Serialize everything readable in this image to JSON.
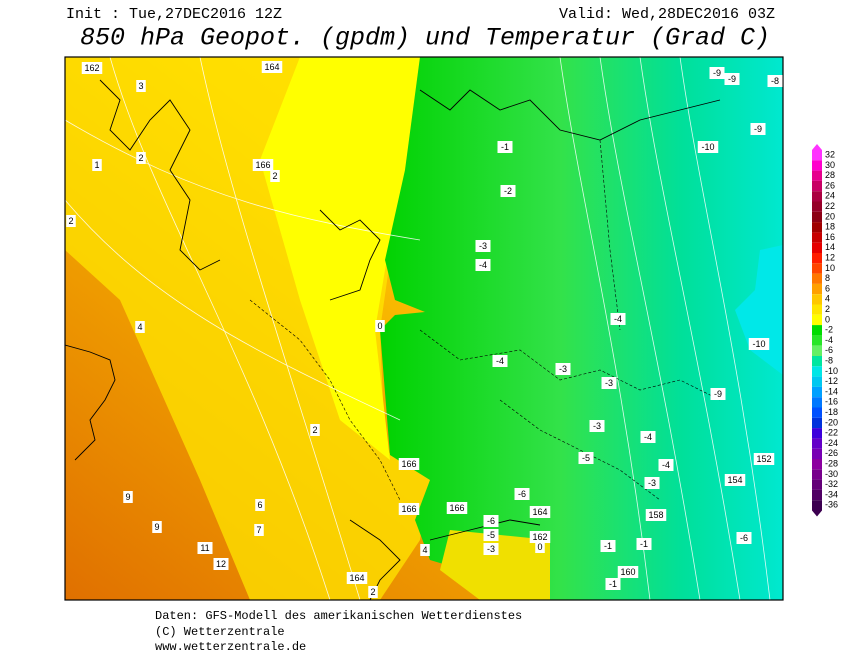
{
  "header": {
    "init": "Init : Tue,27DEC2016 12Z",
    "valid": "Valid: Wed,28DEC2016 03Z",
    "title": "850 hPa Geopot. (gpdm) und Temperatur (Grad C)"
  },
  "legend": {
    "labels": [
      32,
      30,
      28,
      26,
      24,
      22,
      20,
      18,
      16,
      14,
      12,
      10,
      8,
      6,
      4,
      2,
      0,
      -2,
      -4,
      -6,
      -8,
      -10,
      -12,
      -14,
      -16,
      -18,
      -20,
      -22,
      -24,
      -26,
      -28,
      -30,
      -32,
      -34,
      -36
    ]
  },
  "map": {
    "labels": [
      162,
      164,
      3,
      2,
      1,
      166,
      2,
      2,
      4,
      0,
      2,
      166,
      9,
      6,
      9,
      7,
      166,
      166,
      11,
      12,
      164,
      2,
      -1,
      -2,
      -3,
      -4,
      -4,
      -4,
      -3,
      -3,
      -3,
      -4,
      -5,
      -4,
      -3,
      -6,
      164,
      -6,
      -5,
      -3,
      162,
      0,
      -1,
      -1,
      -1,
      158,
      160,
      154,
      152,
      -6,
      -9,
      -10,
      -9,
      -9,
      -8,
      -9,
      -10,
      4
    ]
  },
  "footer": {
    "lines": [
      "Daten: GFS-Modell des amerikanischen Wetterdienstes",
      "(C) Wetterzentrale",
      "www.wetterzentrale.de"
    ]
  }
}
